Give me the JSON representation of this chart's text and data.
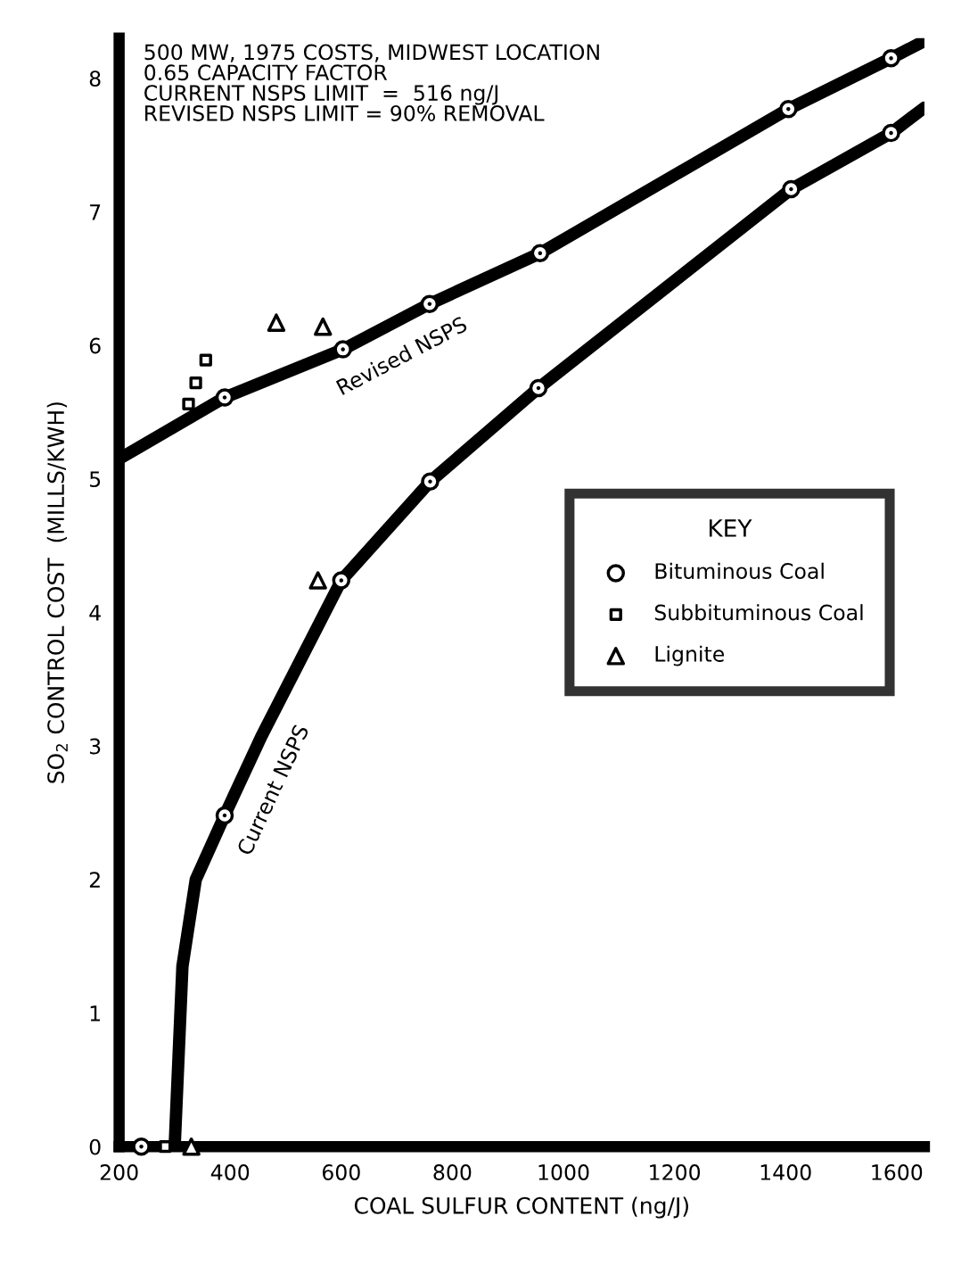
{
  "chart_data": {
    "type": "scatter",
    "xlabel": "COAL SULFUR CONTENT (ng/J)",
    "ylabel": "SO$_{2}$ CONTROL COST  (MILLS/KWH)",
    "annotations": [
      "500 MW, 1975 COSTS, MIDWEST LOCATION\n0.65 CAPACITY FACTOR\nCURRENT NSPS LIMIT  =  516 ng/J\nREVISED NSPS LIMIT = 90% REMOVAL"
    ],
    "legend_title": "KEY",
    "legend": "center right",
    "xlim": [
      200,
      1650
    ],
    "xticks": [
      200,
      400,
      600,
      800,
      1000,
      1200,
      1400,
      1600
    ],
    "ylim": [
      0,
      8.3
    ],
    "yticks": [
      0,
      1,
      2,
      3,
      4,
      5,
      6,
      7,
      8
    ],
    "grid": false,
    "series": [
      {
        "type": "line",
        "name": "Revised NSPS",
        "color": "#000000",
        "x": [
          200,
          390,
          603,
          759,
          958,
          1405,
          1590,
          1650
        ],
        "values": [
          5.15,
          5.61,
          5.97,
          6.31,
          6.69,
          7.77,
          8.15,
          8.28
        ]
      },
      {
        "type": "line",
        "name": "Current NSPS",
        "color": "#000000",
        "x": [
          300,
          314,
          338,
          390,
          456,
          600,
          760,
          955,
          1410,
          1590,
          1650
        ],
        "values": [
          0,
          1.35,
          2.0,
          2.48,
          3.07,
          4.24,
          4.98,
          5.68,
          7.17,
          7.59,
          7.78
        ]
      },
      {
        "name": "Bituminous Coal",
        "color": "#000000",
        "marker": "circle",
        "x": [
          240,
          390,
          603,
          759,
          958,
          1405,
          1590,
          390,
          600,
          760,
          955,
          1410,
          1590
        ],
        "values": [
          0,
          5.61,
          5.97,
          6.31,
          6.69,
          7.77,
          8.15,
          2.48,
          4.24,
          4.98,
          5.68,
          7.17,
          7.59
        ]
      },
      {
        "name": "Subbituminous Coal",
        "color": "#000000",
        "marker": "square",
        "x": [
          283,
          325,
          338,
          356
        ],
        "values": [
          0,
          5.56,
          5.72,
          5.89
        ]
      },
      {
        "name": "Lignite",
        "color": "#000000",
        "marker": "triangle",
        "x": [
          330,
          483,
          567,
          558
        ],
        "values": [
          0,
          6.17,
          6.14,
          4.24
        ]
      }
    ]
  }
}
